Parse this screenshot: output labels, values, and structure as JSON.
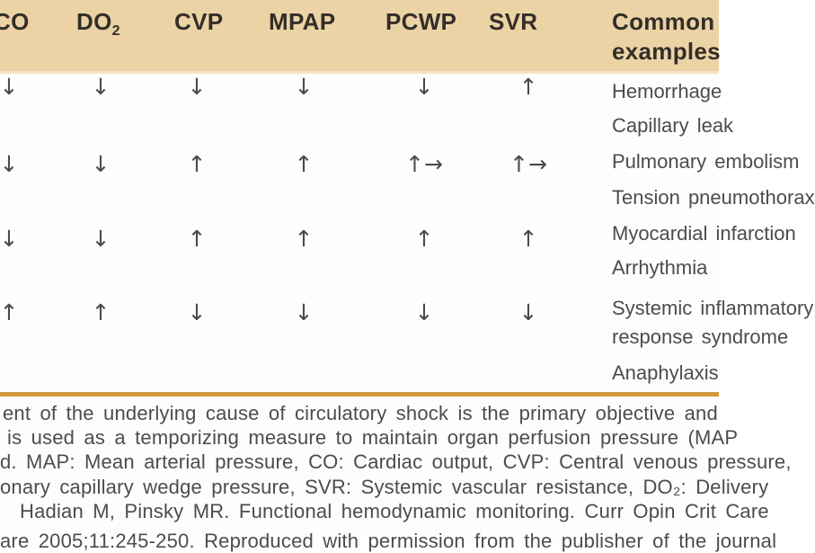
{
  "table": {
    "columns": [
      {
        "label": "CO"
      },
      {
        "label": "DO",
        "sub": "2"
      },
      {
        "label": "CVP"
      },
      {
        "label": "MPAP"
      },
      {
        "label": "PCWP"
      },
      {
        "label": "SVR"
      }
    ],
    "examples_header": {
      "line1": "Common",
      "line2": "examples"
    },
    "rows": [
      {
        "co": "↓",
        "do2": "↓",
        "cvp": "↓",
        "mpap": "↓",
        "pcwp": "↓",
        "svr": "↑",
        "examples": [
          "Hemorrhage",
          "Capillary leak"
        ]
      },
      {
        "co": "↓",
        "do2": "↓",
        "cvp": "↑",
        "mpap": "↑",
        "pcwp": "↑→",
        "svr": "↑→",
        "examples": [
          "Pulmonary embolism",
          "Tension pneumothorax"
        ]
      },
      {
        "co": "↓",
        "do2": "↓",
        "cvp": "↑",
        "mpap": "↑",
        "pcwp": "↑",
        "svr": "↑",
        "examples": [
          "Myocardial infarction",
          "Arrhythmia"
        ]
      },
      {
        "co": "↑",
        "do2": "↑",
        "cvp": "↓",
        "mpap": "↓",
        "pcwp": "↓",
        "svr": "↓",
        "examples": [
          "Systemic inflammatory",
          "response syndrome",
          "Anaphylaxis"
        ]
      }
    ]
  },
  "footnote": {
    "lines": [
      "ent of the underlying cause of circulatory shock is the primary objective and",
      "is used as a temporizing measure to maintain organ perfusion pressure (MAP",
      "d. MAP: Mean arterial pressure, CO: Cardiac output, CVP: Central venous pressure,",
      "onary capillary wedge pressure, SVR: Systemic vascular resistance, DO₂: Delivery",
      "Hadian M, Pinsky MR. Functional hemodynamic monitoring. Curr Opin Crit Care",
      "are 2005;11:245-250. Reproduced with permission from the publisher of the journal"
    ]
  },
  "colors": {
    "header_bg": "#ecd3a6",
    "divider_gold": "#d2973a",
    "text_gray": "#4e4c4a"
  }
}
